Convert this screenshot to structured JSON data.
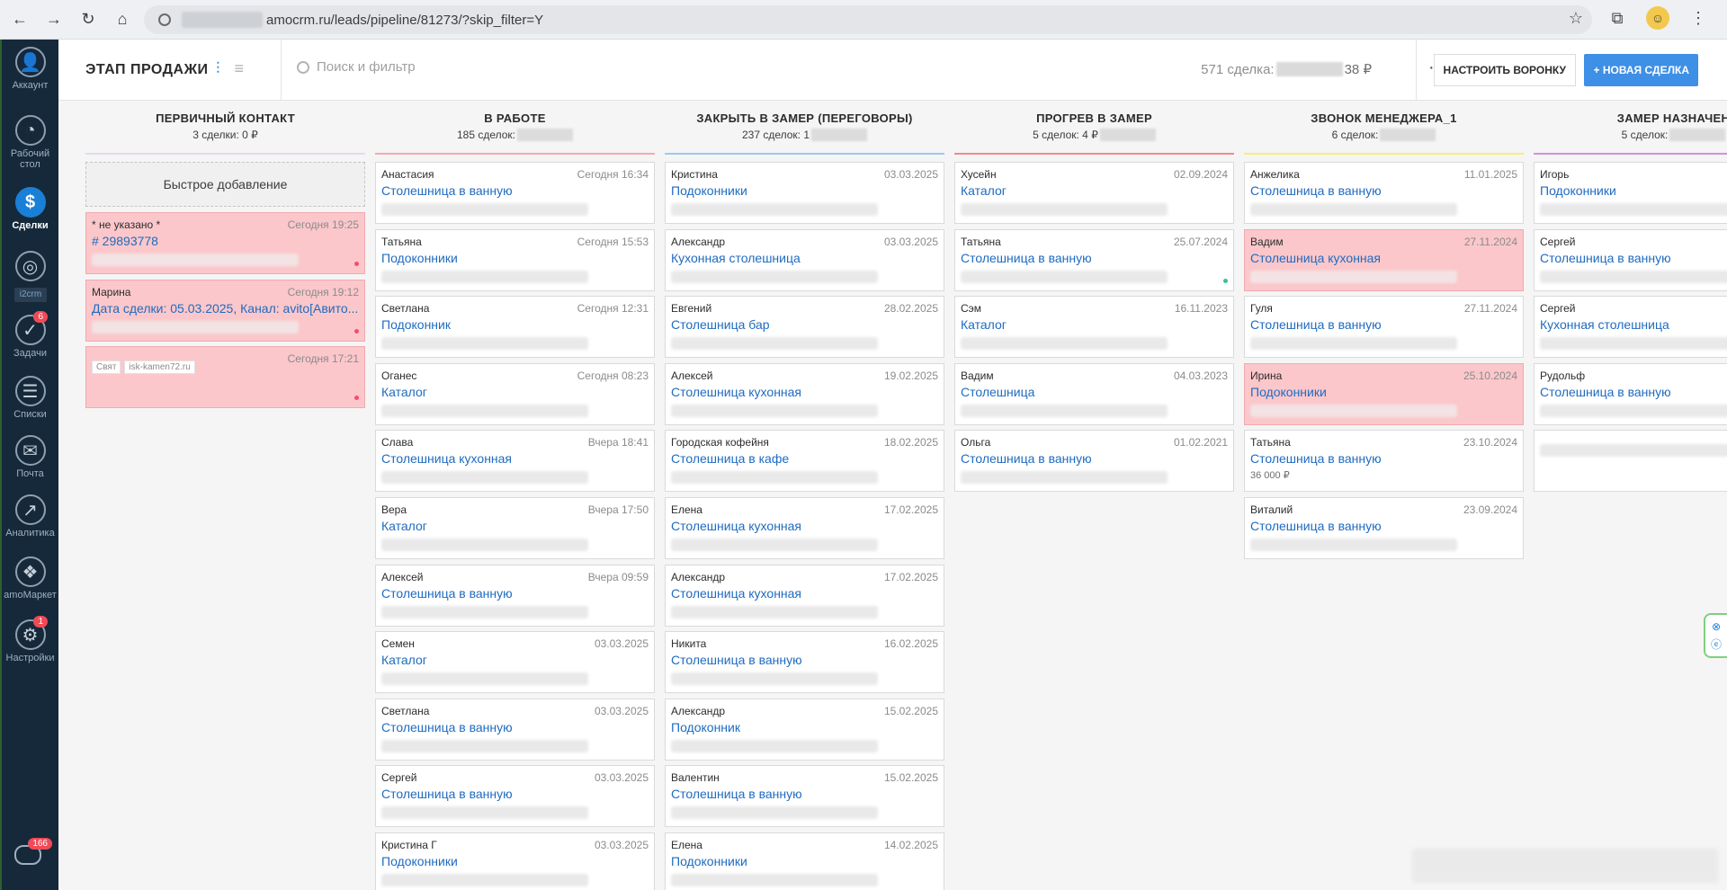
{
  "browser": {
    "url_suffix": "amocrm.ru/leads/pipeline/81273/?skip_filter=Y",
    "nav": [
      "back",
      "forward",
      "reload",
      "home"
    ]
  },
  "leftnav": {
    "items": [
      {
        "label": "Аккаунт",
        "icon": "account-icon"
      },
      {
        "label": "Рабочий стол",
        "icon": "dashboard-icon"
      },
      {
        "label": "Сделки",
        "icon": "deals-icon",
        "active": true
      },
      {
        "label": "i2crm",
        "icon": "i2crm-icon"
      },
      {
        "label": "Задачи",
        "icon": "tasks-icon",
        "badge": "6"
      },
      {
        "label": "Списки",
        "icon": "lists-icon"
      },
      {
        "label": "Почта",
        "icon": "mail-icon"
      },
      {
        "label": "Аналитика",
        "icon": "analytics-icon"
      },
      {
        "label": "amoМаркет",
        "icon": "market-icon"
      },
      {
        "label": "Настройки",
        "icon": "settings-icon",
        "badge": "1"
      }
    ],
    "chat_badge": "166"
  },
  "header": {
    "title": "ЭТАП ПРОДАЖИ",
    "search_placeholder": "Поиск и фильтр",
    "summary_prefix": "571 сделка:",
    "summary_suffix": "38 ₽",
    "more": "···",
    "setup_label": "НАСТРОИТЬ ВОРОНКУ",
    "new_deal_label": "+ НОВАЯ СДЕЛКА"
  },
  "columns": [
    {
      "title": "ПЕРВИЧНЫЙ КОНТАКТ",
      "subtitle": "3 сделки: 0 ₽",
      "line_color": "#e8d8f0",
      "quick_add": "Быстрое добавление",
      "cards": [
        {
          "name": "* не указано *",
          "date": "Сегодня 19:25",
          "deal": "# 29893778",
          "pink": true,
          "dot": "#f0506e"
        },
        {
          "name": "Марина",
          "date": "Сегодня 19:12",
          "deal": "Дата сделки: 05.03.2025, Канал: avito[Авито...",
          "pink": true,
          "dot": "#f0506e"
        },
        {
          "name": "",
          "date": "Сегодня 17:21",
          "deal": "",
          "pink": true,
          "dot": "#f0506e",
          "tags": [
            "Свят",
            "isk-kamen72.ru"
          ]
        }
      ]
    },
    {
      "title": "В РАБОТЕ",
      "subtitle": "185 сделок:",
      "line_color": "#f7a8b0",
      "cards": [
        {
          "name": "Анастасия",
          "date": "Сегодня 16:34",
          "deal": "Столешница в ванную"
        },
        {
          "name": "Татьяна",
          "date": "Сегодня 15:53",
          "deal": "Подоконники"
        },
        {
          "name": "Светлана",
          "date": "Сегодня 12:31",
          "deal": "Подоконник"
        },
        {
          "name": "Оганес",
          "date": "Сегодня 08:23",
          "deal": "Каталог"
        },
        {
          "name": "Слава",
          "date": "Вчера 18:41",
          "deal": "Столешница кухонная"
        },
        {
          "name": "Вера",
          "date": "Вчера 17:50",
          "deal": "Каталог"
        },
        {
          "name": "Алексей",
          "date": "Вчера 09:59",
          "deal": "Столешница в ванную"
        },
        {
          "name": "Семен",
          "date": "03.03.2025",
          "deal": "Каталог"
        },
        {
          "name": "Светлана",
          "date": "03.03.2025",
          "deal": "Столешница в ванную"
        },
        {
          "name": "Сергей",
          "date": "03.03.2025",
          "deal": "Столешница в ванную"
        },
        {
          "name": "Кристина Г",
          "date": "03.03.2025",
          "deal": "Подоконники"
        }
      ]
    },
    {
      "title": "ЗАКРЫТЬ В ЗАМЕР (ПЕРЕГОВОРЫ)",
      "subtitle": "237 сделок: 1",
      "line_color": "#9ec8f0",
      "cards": [
        {
          "name": "Кристина",
          "date": "03.03.2025",
          "deal": "Подоконники"
        },
        {
          "name": "Александр",
          "date": "03.03.2025",
          "deal": "Кухонная столешница"
        },
        {
          "name": "Евгений",
          "date": "28.02.2025",
          "deal": "Столешница бар"
        },
        {
          "name": "Алексей",
          "date": "19.02.2025",
          "deal": "Столешница кухонная"
        },
        {
          "name": "Городская кофейня",
          "date": "18.02.2025",
          "deal": "Столешница в кафе"
        },
        {
          "name": "Елена",
          "date": "17.02.2025",
          "deal": "Столешница кухонная"
        },
        {
          "name": "Александр",
          "date": "17.02.2025",
          "deal": "Столешница кухонная"
        },
        {
          "name": "Никита",
          "date": "16.02.2025",
          "deal": "Столешница в ванную"
        },
        {
          "name": "Александр",
          "date": "15.02.2025",
          "deal": "Подоконник"
        },
        {
          "name": "Валентин",
          "date": "15.02.2025",
          "deal": "Столешница в ванную"
        },
        {
          "name": "Елена",
          "date": "14.02.2025",
          "deal": "Подоконники"
        }
      ]
    },
    {
      "title": "ПРОГРЕВ В ЗАМЕР",
      "subtitle": "5 сделок: 4 ₽",
      "line_color": "#f08a8a",
      "cards": [
        {
          "name": "Хусейн",
          "date": "02.09.2024",
          "deal": "Каталог"
        },
        {
          "name": "Татьяна",
          "date": "25.07.2024",
          "deal": "Столешница в ванную",
          "dot": "#3fc08a"
        },
        {
          "name": "Сэм",
          "date": "16.11.2023",
          "deal": "Каталог"
        },
        {
          "name": "Вадим",
          "date": "04.03.2023",
          "deal": "Столешница"
        },
        {
          "name": "Ольга",
          "date": "01.02.2021",
          "deal": "Столешница в ванную"
        }
      ]
    },
    {
      "title": "ЗВОНОК МЕНЕДЖЕРА_1",
      "subtitle": "6 сделок:",
      "line_color": "#f2ef7a",
      "cards": [
        {
          "name": "Анжелика",
          "date": "11.01.2025",
          "deal": "Столешница в ванную"
        },
        {
          "name": "Вадим",
          "date": "27.11.2024",
          "deal": "Столешница кухонная",
          "pink": true
        },
        {
          "name": "Гуля",
          "date": "27.11.2024",
          "deal": "Столешница в ванную"
        },
        {
          "name": "Ирина",
          "date": "25.10.2024",
          "deal": "Подоконники",
          "pink": true
        },
        {
          "name": "Татьяна",
          "date": "23.10.2024",
          "deal": "Столешница в ванную",
          "extra": "36 000 ₽"
        },
        {
          "name": "Виталий",
          "date": "23.09.2024",
          "deal": "Столешница в ванную"
        }
      ]
    },
    {
      "title": "ЗАМЕР НАЗНАЧЕН",
      "subtitle": "5 сделок:",
      "line_color": "#d58fe0",
      "cards": [
        {
          "name": "Игорь",
          "date": "",
          "deal": "Подоконники"
        },
        {
          "name": "Сергей",
          "date": "",
          "deal": "Столешница в ванную"
        },
        {
          "name": "Сергей",
          "date": "",
          "deal": "Кухонная столешница"
        },
        {
          "name": "Рудольф",
          "date": "",
          "deal": "Столешница в ванную"
        },
        {
          "name": "",
          "date": "",
          "deal": ""
        }
      ]
    }
  ]
}
